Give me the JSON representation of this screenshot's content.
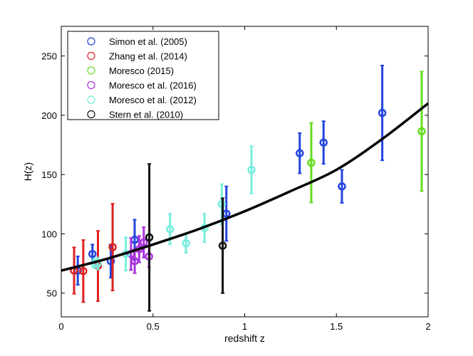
{
  "chart_data": {
    "type": "scatter",
    "title": "",
    "xlabel": "redshift z",
    "ylabel": "H(z)",
    "xlim": [
      0,
      2
    ],
    "ylim": [
      30,
      275
    ],
    "xticks": [
      0,
      0.5,
      1,
      1.5,
      2
    ],
    "xtick_labels": [
      "0",
      "0.5",
      "1",
      "1.5",
      "2"
    ],
    "yticks": [
      50,
      100,
      150,
      200,
      250
    ],
    "ytick_labels": [
      "50",
      "100",
      "150",
      "200",
      "250"
    ],
    "grid": false,
    "legend": {
      "placement": "top-left"
    },
    "series": [
      {
        "name": "Simon et al. (2005)",
        "color": "#2244dd",
        "points": [
          {
            "z": 0.09,
            "h": 69,
            "err": 12
          },
          {
            "z": 0.17,
            "h": 83,
            "err": 8
          },
          {
            "z": 0.27,
            "h": 77,
            "err": 14
          },
          {
            "z": 0.4,
            "h": 95,
            "err": 17
          },
          {
            "z": 0.9,
            "h": 117,
            "err": 23
          },
          {
            "z": 1.3,
            "h": 168,
            "err": 17
          },
          {
            "z": 1.43,
            "h": 177,
            "err": 18
          },
          {
            "z": 1.53,
            "h": 140,
            "err": 14
          },
          {
            "z": 1.75,
            "h": 202,
            "err": 40
          }
        ]
      },
      {
        "name": "Zhang et al. (2014)",
        "color": "#dd2222",
        "points": [
          {
            "z": 0.07,
            "h": 69,
            "err": 19.6
          },
          {
            "z": 0.12,
            "h": 68.6,
            "err": 26.2
          },
          {
            "z": 0.2,
            "h": 72.9,
            "err": 29.6
          },
          {
            "z": 0.28,
            "h": 88.8,
            "err": 36.6
          }
        ]
      },
      {
        "name": "Moresco (2015)",
        "color": "#66dd22",
        "points": [
          {
            "z": 1.363,
            "h": 160,
            "err": 33.6
          },
          {
            "z": 1.965,
            "h": 186.5,
            "err": 50.4
          }
        ]
      },
      {
        "name": "Moresco et al. (2016)",
        "color": "#aa33dd",
        "points": [
          {
            "z": 0.3802,
            "h": 83,
            "err": 13.5
          },
          {
            "z": 0.4004,
            "h": 77,
            "err": 10.2
          },
          {
            "z": 0.4247,
            "h": 87.1,
            "err": 11.2
          },
          {
            "z": 0.4497,
            "h": 92.8,
            "err": 12.9
          },
          {
            "z": 0.4783,
            "h": 80.9,
            "err": 9
          }
        ]
      },
      {
        "name": "Moresco et al. (2012)",
        "color": "#77eedd",
        "points": [
          {
            "z": 0.179,
            "h": 75,
            "err": 4
          },
          {
            "z": 0.199,
            "h": 75,
            "err": 5
          },
          {
            "z": 0.352,
            "h": 83,
            "err": 14
          },
          {
            "z": 0.593,
            "h": 104,
            "err": 13
          },
          {
            "z": 0.68,
            "h": 92,
            "err": 8
          },
          {
            "z": 0.781,
            "h": 105,
            "err": 12
          },
          {
            "z": 0.875,
            "h": 125,
            "err": 17
          },
          {
            "z": 1.037,
            "h": 154,
            "err": 20
          }
        ]
      },
      {
        "name": "Stern et al. (2010)",
        "color": "#111111",
        "points": [
          {
            "z": 0.48,
            "h": 97,
            "err": 62
          },
          {
            "z": 0.88,
            "h": 90,
            "err": 40
          }
        ]
      }
    ],
    "model_curve": {
      "color": "#000000",
      "points": [
        [
          0,
          69
        ],
        [
          0.25,
          79
        ],
        [
          0.5,
          91
        ],
        [
          0.75,
          104
        ],
        [
          1,
          119
        ],
        [
          1.25,
          136
        ],
        [
          1.5,
          154
        ],
        [
          1.75,
          180
        ],
        [
          2,
          210
        ]
      ]
    }
  }
}
